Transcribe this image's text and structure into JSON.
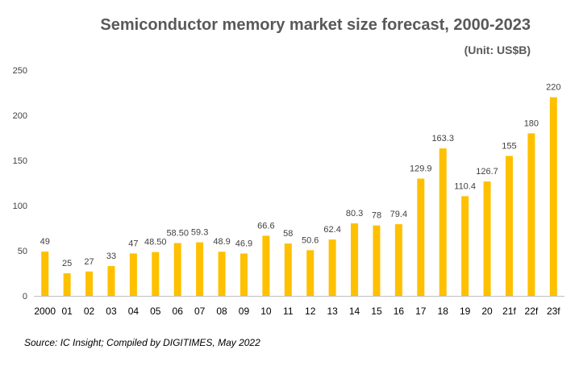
{
  "chart_data": {
    "type": "bar",
    "title": "Semiconductor memory market size forecast, 2000-2023",
    "subtitle": "(Unit: US$B)",
    "source": "Source: IC Insight; Compiled by DIGITIMES, May 2022",
    "categories": [
      "2000",
      "01",
      "02",
      "03",
      "04",
      "05",
      "06",
      "07",
      "08",
      "09",
      "10",
      "11",
      "12",
      "13",
      "14",
      "15",
      "16",
      "17",
      "18",
      "19",
      "20",
      "21f",
      "22f",
      "23f"
    ],
    "values": [
      49,
      25,
      27,
      33,
      47,
      48.5,
      58.5,
      59.3,
      48.9,
      46.9,
      66.6,
      58,
      50.6,
      62.4,
      80.3,
      78,
      79.4,
      129.9,
      163.3,
      110.4,
      126.7,
      155,
      180,
      220
    ],
    "data_labels": [
      "49",
      "25",
      "27",
      "33",
      "47",
      "48.50",
      "58.50",
      "59.3",
      "48.9",
      "46.9",
      "66.6",
      "58",
      "50.6",
      "62.4",
      "80.3",
      "78",
      "79.4",
      "129.9",
      "163.3",
      "110.4",
      "126.7",
      "155",
      "180",
      "220"
    ],
    "yticks": [
      "0",
      "50",
      "100",
      "150",
      "200",
      "250"
    ],
    "ylim": [
      0,
      250
    ],
    "grid": false,
    "bar_color": "#FFC000"
  }
}
